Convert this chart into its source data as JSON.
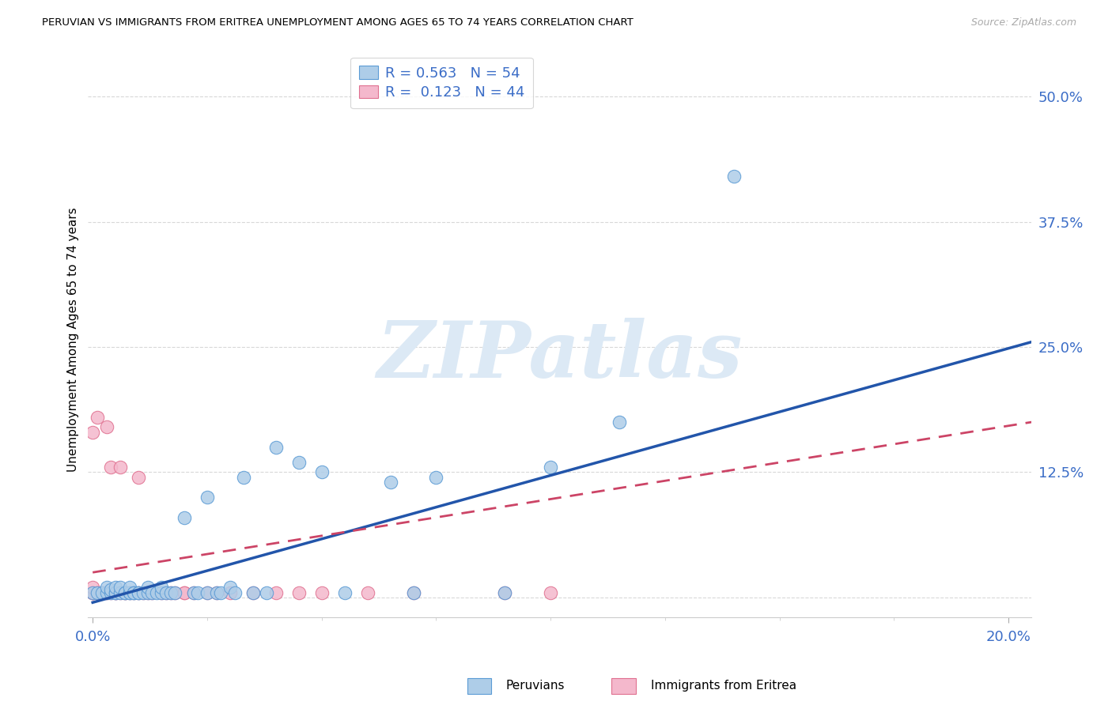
{
  "title": "PERUVIAN VS IMMIGRANTS FROM ERITREA UNEMPLOYMENT AMONG AGES 65 TO 74 YEARS CORRELATION CHART",
  "source": "Source: ZipAtlas.com",
  "ylabel": "Unemployment Among Ages 65 to 74 years",
  "xlim": [
    -0.001,
    0.205
  ],
  "ylim": [
    -0.02,
    0.535
  ],
  "xtick_major": [
    0.0,
    0.2
  ],
  "xtick_major_labels": [
    "0.0%",
    "20.0%"
  ],
  "xtick_minor": [
    0.0,
    0.025,
    0.05,
    0.075,
    0.1,
    0.125,
    0.15,
    0.175,
    0.2
  ],
  "ytick_positions": [
    0.0,
    0.125,
    0.25,
    0.375,
    0.5
  ],
  "ytick_labels": [
    "",
    "12.5%",
    "25.0%",
    "37.5%",
    "50.0%"
  ],
  "blue_R": "0.563",
  "blue_N": "54",
  "pink_R": "0.123",
  "pink_N": "44",
  "blue_dot_color": "#aecde8",
  "blue_edge_color": "#5b9bd5",
  "pink_dot_color": "#f4b8cc",
  "pink_edge_color": "#e07090",
  "blue_line_color": "#2255aa",
  "pink_line_color": "#cc4466",
  "grid_color": "#d8d8d8",
  "axis_label_color": "#3b6dc7",
  "blue_scatter_x": [
    0.0,
    0.001,
    0.002,
    0.003,
    0.003,
    0.004,
    0.004,
    0.005,
    0.005,
    0.005,
    0.006,
    0.006,
    0.007,
    0.007,
    0.008,
    0.008,
    0.008,
    0.009,
    0.009,
    0.01,
    0.01,
    0.011,
    0.012,
    0.012,
    0.013,
    0.014,
    0.015,
    0.015,
    0.016,
    0.017,
    0.018,
    0.02,
    0.022,
    0.023,
    0.025,
    0.025,
    0.027,
    0.028,
    0.03,
    0.031,
    0.033,
    0.035,
    0.038,
    0.04,
    0.045,
    0.05,
    0.055,
    0.065,
    0.07,
    0.075,
    0.09,
    0.1,
    0.115,
    0.14
  ],
  "blue_scatter_y": [
    0.005,
    0.005,
    0.005,
    0.005,
    0.01,
    0.005,
    0.008,
    0.005,
    0.005,
    0.01,
    0.005,
    0.01,
    0.005,
    0.005,
    0.005,
    0.005,
    0.01,
    0.005,
    0.005,
    0.005,
    0.005,
    0.005,
    0.005,
    0.01,
    0.005,
    0.005,
    0.005,
    0.01,
    0.005,
    0.005,
    0.005,
    0.08,
    0.005,
    0.005,
    0.005,
    0.1,
    0.005,
    0.005,
    0.01,
    0.005,
    0.12,
    0.005,
    0.005,
    0.15,
    0.135,
    0.125,
    0.005,
    0.115,
    0.005,
    0.12,
    0.005,
    0.13,
    0.175,
    0.42
  ],
  "pink_scatter_x": [
    0.0,
    0.0,
    0.0,
    0.0,
    0.0,
    0.001,
    0.001,
    0.002,
    0.002,
    0.003,
    0.003,
    0.004,
    0.004,
    0.005,
    0.005,
    0.006,
    0.006,
    0.007,
    0.007,
    0.008,
    0.009,
    0.01,
    0.01,
    0.011,
    0.012,
    0.013,
    0.015,
    0.016,
    0.017,
    0.018,
    0.02,
    0.02,
    0.022,
    0.025,
    0.027,
    0.03,
    0.035,
    0.04,
    0.045,
    0.05,
    0.06,
    0.07,
    0.09,
    0.1
  ],
  "pink_scatter_y": [
    0.005,
    0.005,
    0.005,
    0.01,
    0.165,
    0.005,
    0.18,
    0.005,
    0.005,
    0.005,
    0.17,
    0.005,
    0.13,
    0.005,
    0.005,
    0.005,
    0.13,
    0.005,
    0.005,
    0.005,
    0.005,
    0.005,
    0.12,
    0.005,
    0.005,
    0.005,
    0.005,
    0.005,
    0.005,
    0.005,
    0.005,
    0.005,
    0.005,
    0.005,
    0.005,
    0.005,
    0.005,
    0.005,
    0.005,
    0.005,
    0.005,
    0.005,
    0.005,
    0.005
  ],
  "blue_line_x0": 0.0,
  "blue_line_y0": -0.005,
  "blue_line_x1": 0.205,
  "blue_line_y1": 0.255,
  "pink_line_x0": 0.0,
  "pink_line_y0": 0.025,
  "pink_line_x1": 0.205,
  "pink_line_y1": 0.175,
  "watermark_text": "ZIPatlas",
  "legend_blue_label": "R = 0.563   N = 54",
  "legend_pink_label": "R =  0.123   N = 44",
  "bottom_legend_blue": "Peruvians",
  "bottom_legend_pink": "Immigrants from Eritrea"
}
